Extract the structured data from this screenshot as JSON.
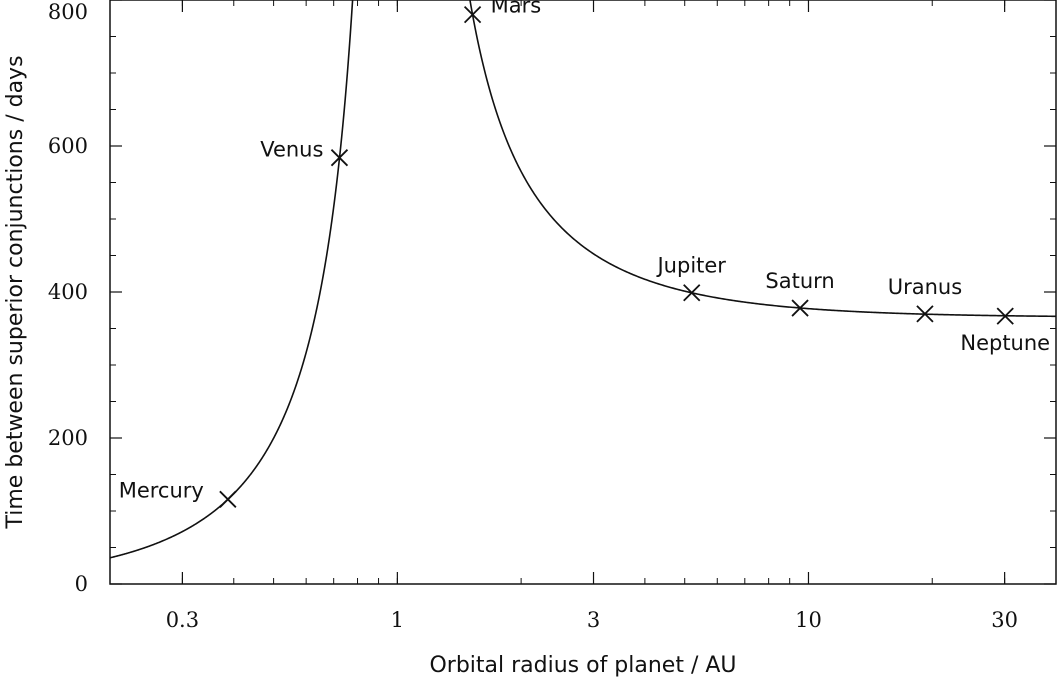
{
  "chart_data": {
    "type": "scatter",
    "xlabel": "Orbital radius of planet / AU",
    "ylabel": "Time between superior conjunctions / days",
    "x_scale": "log",
    "xlim": [
      0.2,
      40
    ],
    "ylim": [
      0,
      800
    ],
    "x_ticks": [
      {
        "value": 0.3,
        "label": "0.3"
      },
      {
        "value": 1,
        "label": "1"
      },
      {
        "value": 3,
        "label": "3"
      },
      {
        "value": 10,
        "label": "10"
      },
      {
        "value": 30,
        "label": "30"
      }
    ],
    "y_ticks": [
      {
        "value": 0,
        "label": "0"
      },
      {
        "value": 200,
        "label": "200"
      },
      {
        "value": 400,
        "label": "400"
      },
      {
        "value": 600,
        "label": "600"
      },
      {
        "value": 800,
        "label": "800"
      }
    ],
    "grid": false,
    "points": [
      {
        "name": "Mercury",
        "x": 0.387,
        "y": 116
      },
      {
        "name": "Venus",
        "x": 0.723,
        "y": 584
      },
      {
        "name": "Mars",
        "x": 1.524,
        "y": 780
      },
      {
        "name": "Jupiter",
        "x": 5.2,
        "y": 399
      },
      {
        "name": "Saturn",
        "x": 9.54,
        "y": 378
      },
      {
        "name": "Uranus",
        "x": 19.2,
        "y": 370
      },
      {
        "name": "Neptune",
        "x": 30.1,
        "y": 367
      }
    ],
    "curve": {
      "name": "",
      "formula": "T = 365.25 / |1 - r^(-1.5)|"
    }
  }
}
